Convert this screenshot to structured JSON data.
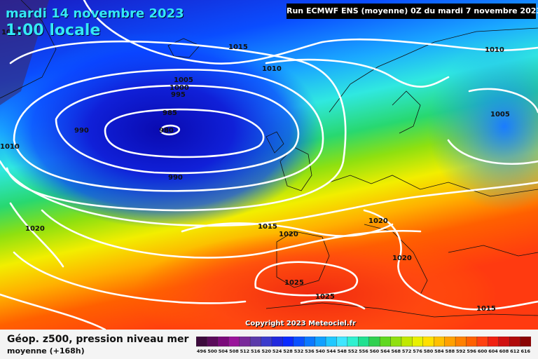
{
  "header": {
    "date": "mardi 14 novembre 2023",
    "local_time": "1:00 locale",
    "run": "Run ECMWF ENS (moyenne) 0Z du mardi 7 novembre 2023"
  },
  "copyright": "Copyright 2023 Meteociel.fr",
  "footer": {
    "title": "Géop. z500, pression niveau mer",
    "subtitle": "moyenne  (+168h)"
  },
  "isobars": [
    {
      "value": "1000"
    },
    {
      "value": "1015"
    },
    {
      "value": "1010"
    },
    {
      "value": "1010"
    },
    {
      "value": "1005"
    },
    {
      "value": "1000"
    },
    {
      "value": "995"
    },
    {
      "value": "985"
    },
    {
      "value": "980"
    },
    {
      "value": "990"
    },
    {
      "value": "990"
    },
    {
      "value": "1010"
    },
    {
      "value": "1005"
    },
    {
      "value": "1020"
    },
    {
      "value": "1015"
    },
    {
      "value": "1020"
    },
    {
      "value": "1020"
    },
    {
      "value": "1020"
    },
    {
      "value": "1025"
    },
    {
      "value": "1025"
    },
    {
      "value": "1015"
    }
  ],
  "legend": {
    "values": [
      "496",
      "500",
      "504",
      "508",
      "512",
      "516",
      "520",
      "524",
      "528",
      "532",
      "536",
      "540",
      "544",
      "548",
      "552",
      "556",
      "560",
      "564",
      "568",
      "572",
      "576",
      "580",
      "584",
      "588",
      "592",
      "596",
      "600",
      "604",
      "608",
      "612",
      "616"
    ],
    "colors": [
      "#3c0a3c",
      "#5a0a5a",
      "#7a0a7a",
      "#9a149a",
      "#7a2a9a",
      "#5a3aaa",
      "#3a3acc",
      "#2028dd",
      "#0a2aff",
      "#0a50ff",
      "#0a78ff",
      "#10a0ff",
      "#20c8ff",
      "#40e6ff",
      "#30f0d0",
      "#20e090",
      "#30d050",
      "#60d820",
      "#90e010",
      "#c0e800",
      "#e8f000",
      "#ffe000",
      "#ffc000",
      "#ffa000",
      "#ff8000",
      "#ff6000",
      "#ff4010",
      "#f02010",
      "#d01010",
      "#b00a0a",
      "#8a0505"
    ]
  }
}
